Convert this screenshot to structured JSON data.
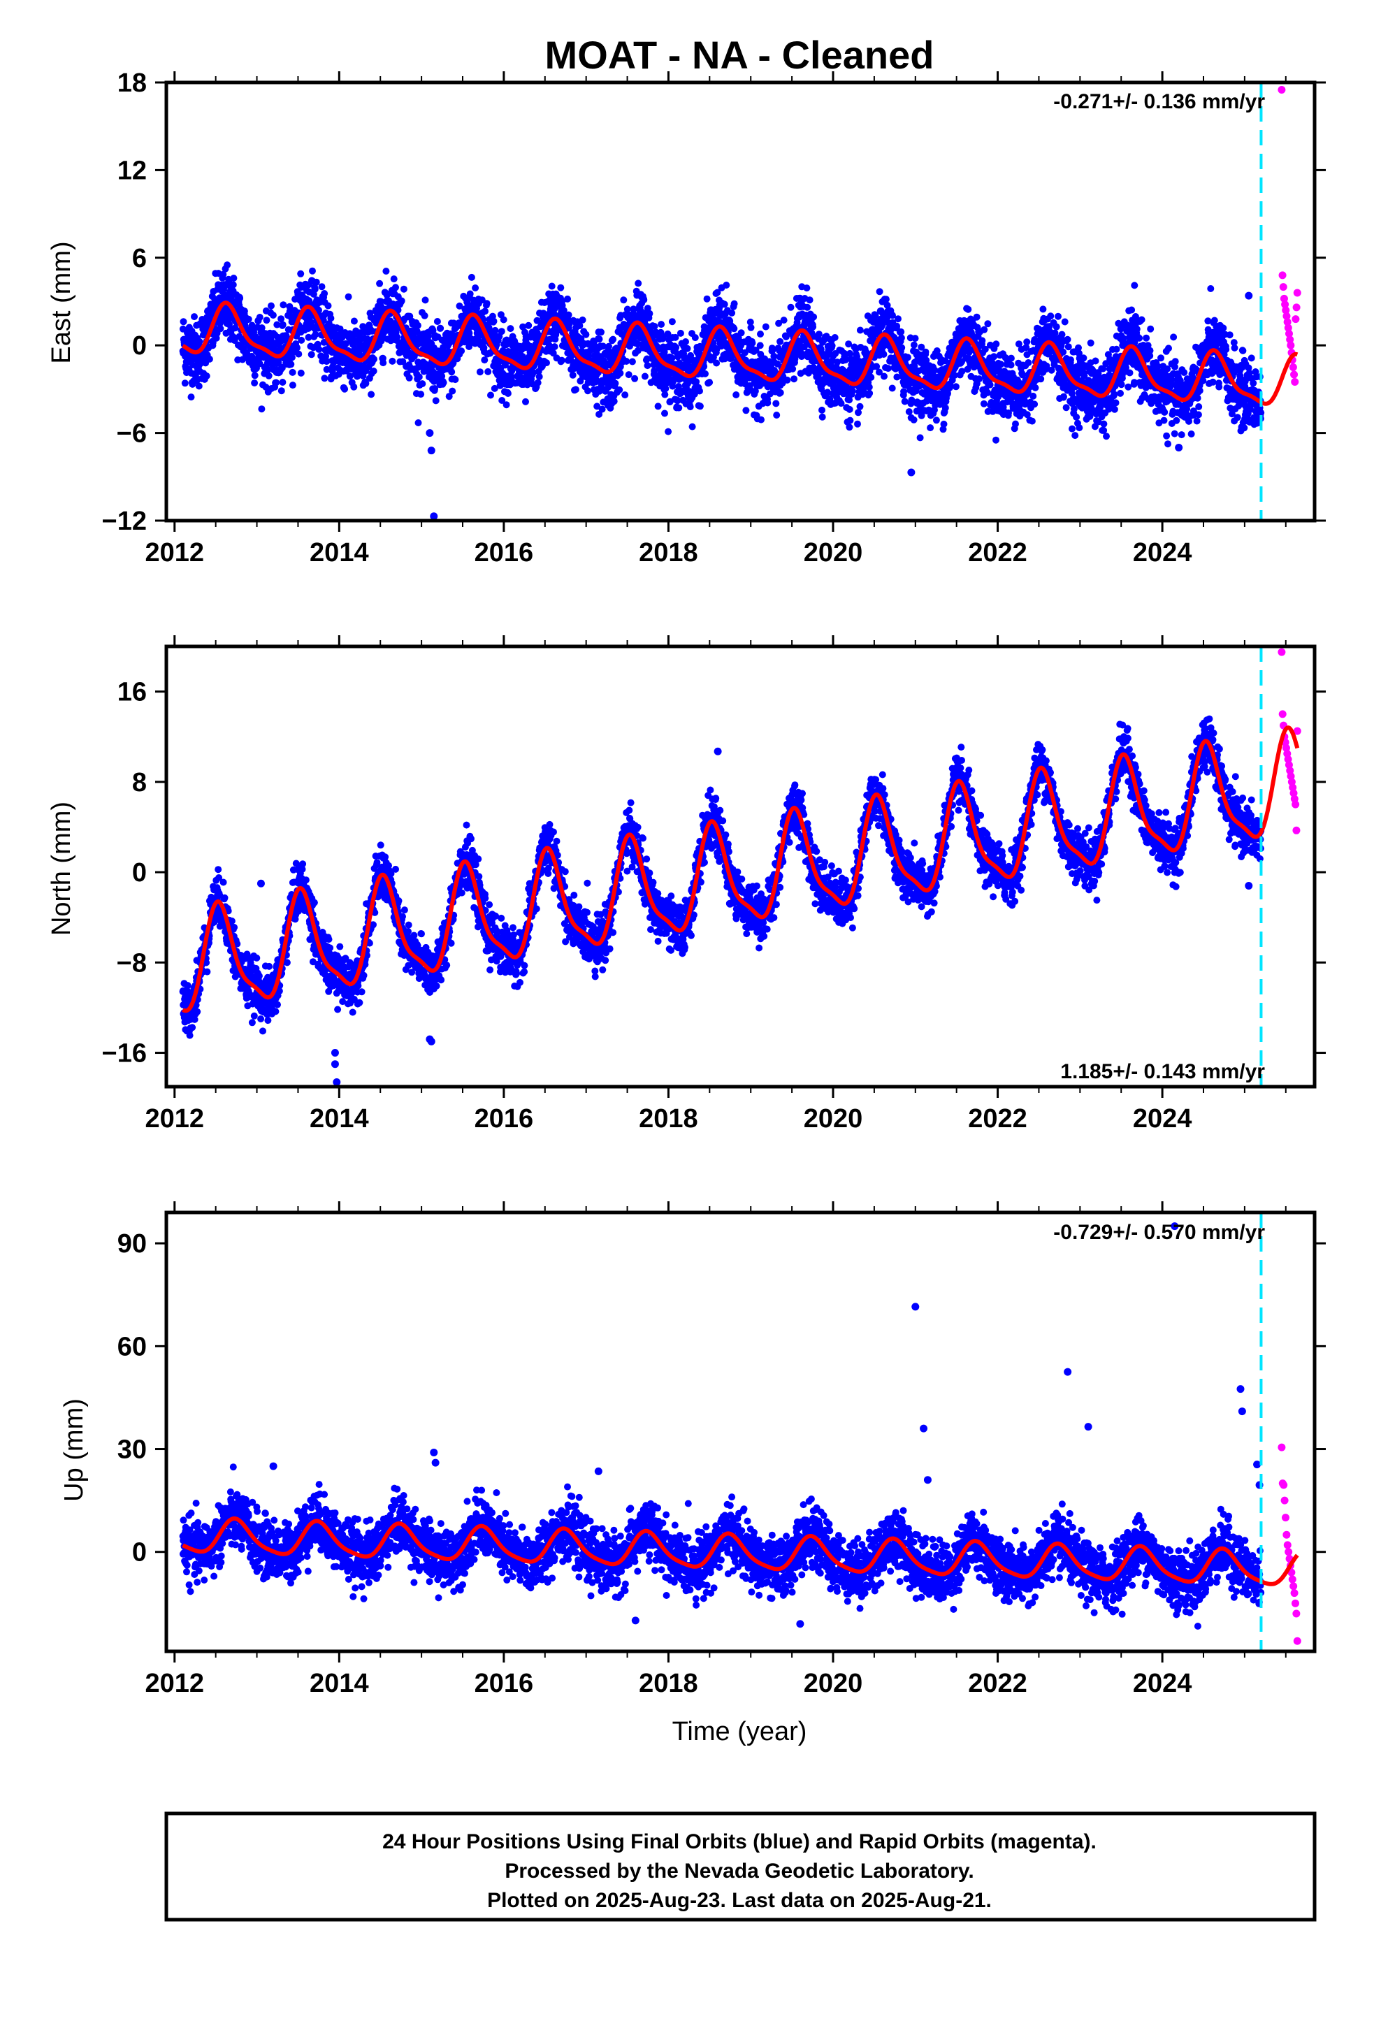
{
  "title": "MOAT  - NA - Cleaned",
  "xlabel": "Time (year)",
  "colors": {
    "final": "#0000ff",
    "rapid": "#ff00ff",
    "model": "#ff0000",
    "event": "#00e5ff",
    "frame": "#000000"
  },
  "footer": {
    "line1": "24 Hour Positions Using Final Orbits (blue) and Rapid Orbits (magenta).",
    "line2": "Processed by the Nevada Geodetic Laboratory.",
    "line3": "Plotted on 2025-Aug-23. Last data on 2025-Aug-21."
  },
  "chart_data": [
    {
      "type": "scatter",
      "ylabel": "East (mm)",
      "rate_text": "-0.271+/- 0.136 mm/yr",
      "xlim": [
        2011.9,
        2025.85
      ],
      "ylim": [
        -12,
        18
      ],
      "x_ticks": [
        "2012",
        "2014",
        "2016",
        "2018",
        "2020",
        "2022",
        "2024"
      ],
      "y_ticks": [
        "18",
        "12",
        "6",
        "0",
        "−6",
        "−12"
      ],
      "event_line_x": 2025.2,
      "model": {
        "offset": 1.0,
        "trend_mm_per_yr": -0.271,
        "t0": 2012.1,
        "annual_amp": 1.6,
        "annual_phase_year": 0.65,
        "semiannual_amp": 0.5
      },
      "data_range": [
        2012.1,
        2025.2
      ],
      "scatter_sd": 1.2,
      "rapid_range": [
        2025.45,
        2025.64
      ],
      "rapid_points_y": [
        17.5,
        4.8,
        4.0,
        3.2,
        2.8,
        2.4,
        2.0,
        1.6,
        1.2,
        0.8,
        0.4,
        0.0,
        -0.5,
        -1.0,
        -1.5,
        -2.0,
        -2.5,
        1.8,
        2.6,
        3.6
      ],
      "outliers": [
        {
          "x": 2015.1,
          "y": -6.0
        },
        {
          "x": 2015.12,
          "y": -7.2
        },
        {
          "x": 2015.15,
          "y": -11.7
        },
        {
          "x": 2020.95,
          "y": -8.7
        },
        {
          "x": 2024.2,
          "y": -7.0
        },
        {
          "x": 2025.05,
          "y": 3.4
        }
      ]
    },
    {
      "type": "scatter",
      "ylabel": "North (mm)",
      "rate_text": "1.185+/- 0.143 mm/yr",
      "xlim": [
        2011.9,
        2025.85
      ],
      "ylim": [
        -19,
        20
      ],
      "x_ticks": [
        "2012",
        "2014",
        "2016",
        "2018",
        "2020",
        "2022",
        "2024"
      ],
      "y_ticks": [
        "16",
        "8",
        "0",
        "−8",
        "−16"
      ],
      "event_line_x": 2025.2,
      "model": {
        "offset": -8.5,
        "trend_mm_per_yr": 1.185,
        "t0": 2012.1,
        "annual_amp": 4.3,
        "annual_phase_year": 0.55,
        "semiannual_amp": 1.2
      },
      "data_range": [
        2012.1,
        2025.2
      ],
      "scatter_sd": 1.1,
      "rapid_range": [
        2025.45,
        2025.64
      ],
      "rapid_points_y": [
        19.5,
        14.0,
        13.0,
        12.0,
        11.5,
        11.0,
        10.5,
        10.0,
        9.5,
        9.0,
        8.5,
        8.0,
        7.5,
        7.0,
        6.5,
        6.0,
        3.7,
        12.5
      ],
      "outliers": [
        {
          "x": 2013.95,
          "y": -16.0
        },
        {
          "x": 2013.95,
          "y": -17.0
        },
        {
          "x": 2013.97,
          "y": -18.6
        },
        {
          "x": 2015.1,
          "y": -14.8
        },
        {
          "x": 2015.12,
          "y": -15.0
        },
        {
          "x": 2013.05,
          "y": -1.0
        },
        {
          "x": 2018.6,
          "y": 10.7
        },
        {
          "x": 2025.05,
          "y": -1.2
        }
      ]
    },
    {
      "type": "scatter",
      "ylabel": "Up (mm)",
      "rate_text": "-0.729+/- 0.570 mm/yr",
      "xlim": [
        2011.9,
        2025.85
      ],
      "ylim": [
        -29,
        99
      ],
      "x_ticks": [
        "2012",
        "2014",
        "2016",
        "2018",
        "2020",
        "2022",
        "2024"
      ],
      "y_ticks": [
        "90",
        "60",
        "30",
        "0"
      ],
      "event_line_x": 2025.2,
      "model": {
        "offset": 4.5,
        "trend_mm_per_yr": -0.729,
        "t0": 2012.1,
        "annual_amp": 4.8,
        "annual_phase_year": 0.75,
        "semiannual_amp": 1.0
      },
      "data_range": [
        2012.1,
        2025.2
      ],
      "scatter_sd": 4.2,
      "rapid_range": [
        2025.45,
        2025.64
      ],
      "rapid_points_y": [
        30.5,
        20.0,
        19.5,
        15.0,
        10.0,
        5.0,
        2.0,
        0.0,
        -2.0,
        -4.0,
        -6.0,
        -8.0,
        -10.0,
        -12.0,
        -15.0,
        -18.0,
        -26.0
      ],
      "outliers": [
        {
          "x": 2024.15,
          "y": 95.0
        },
        {
          "x": 2021.0,
          "y": 71.5
        },
        {
          "x": 2021.1,
          "y": 36.0
        },
        {
          "x": 2021.15,
          "y": 21.0
        },
        {
          "x": 2022.85,
          "y": 52.5
        },
        {
          "x": 2023.1,
          "y": 36.5
        },
        {
          "x": 2024.95,
          "y": 47.5
        },
        {
          "x": 2024.97,
          "y": 41.0
        },
        {
          "x": 2025.15,
          "y": 25.5
        },
        {
          "x": 2025.18,
          "y": 19.5
        },
        {
          "x": 2015.15,
          "y": 29.0
        },
        {
          "x": 2015.17,
          "y": 26.0
        },
        {
          "x": 2013.2,
          "y": 25.0
        },
        {
          "x": 2017.15,
          "y": 23.5
        },
        {
          "x": 2017.6,
          "y": -20.0
        },
        {
          "x": 2019.6,
          "y": -21.0
        }
      ]
    }
  ]
}
